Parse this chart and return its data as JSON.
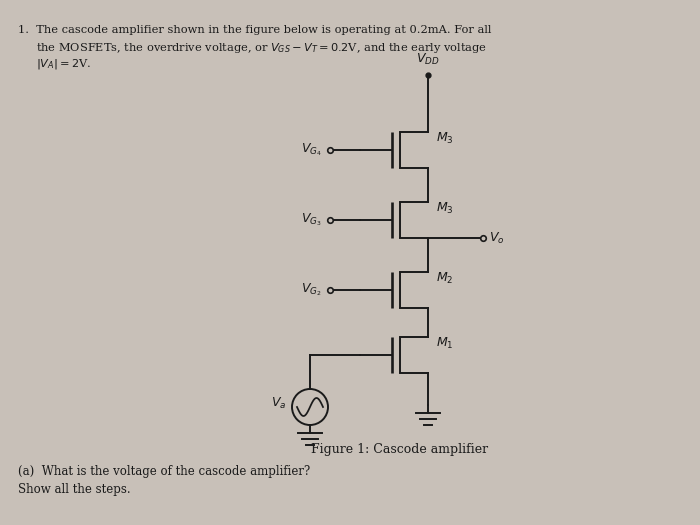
{
  "bg_color": "#c8c0b8",
  "text_color": "#1a1a1a",
  "figure_caption": "Figure 1: Cascode amplifier",
  "question_a": "(a)  What is the voltage of the cascode amplifier?",
  "show_steps": "Show all the steps.",
  "vdd_label": "$V_{DD}$",
  "vg4_label": "$V_{G_4}$",
  "vg3_label": "$V_{G_3}$",
  "vg2_label": "$V_{G_2}$",
  "va_label": "$V_a$",
  "vo_label": "$V_o$",
  "m4_label": "$M_3$",
  "m3_label": "$M_3$",
  "m2_label": "$M_2$",
  "m1_label": "$M_1$",
  "line1": "1.  The cascode amplifier shown in the figure below is operating at 0.2mA. For all",
  "line2": "     the MOSFETs, the overdrive voltage, or $V_{GS}-V_T = 0.2$V, and the early voltage",
  "line3": "     $|V_A|=2$V."
}
